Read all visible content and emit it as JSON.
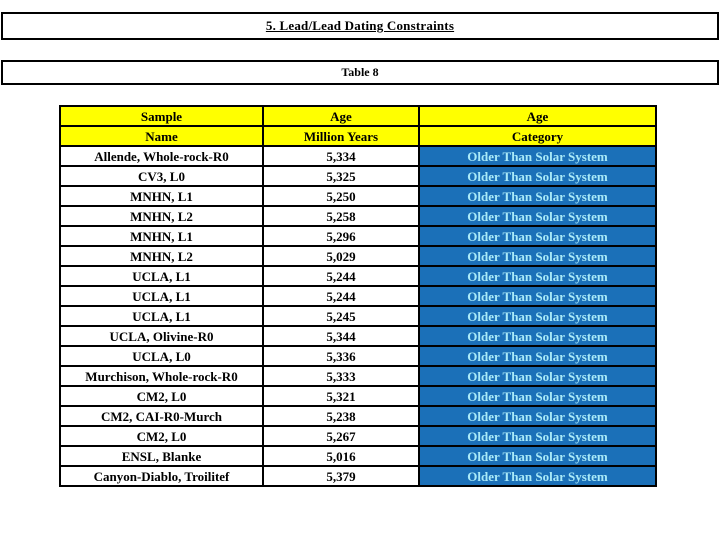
{
  "slide": {
    "title": "5. Lead/Lead Dating Constraints",
    "table_label": "Table 8"
  },
  "table": {
    "columns": [
      {
        "line1": "Sample",
        "line2": "Name"
      },
      {
        "line1": "Age",
        "line2": "Million Years"
      },
      {
        "line1": "Age",
        "line2": "Category"
      }
    ],
    "rows": [
      {
        "name": "Allende, Whole-rock-R0",
        "age": "5,334",
        "category": "Older Than Solar System"
      },
      {
        "name": "CV3, L0",
        "age": "5,325",
        "category": "Older Than Solar System"
      },
      {
        "name": "MNHN, L1",
        "age": "5,250",
        "category": "Older Than Solar System"
      },
      {
        "name": "MNHN, L2",
        "age": "5,258",
        "category": "Older Than Solar System"
      },
      {
        "name": "MNHN, L1",
        "age": "5,296",
        "category": "Older Than Solar System"
      },
      {
        "name": "MNHN, L2",
        "age": "5,029",
        "category": "Older Than Solar System"
      },
      {
        "name": "UCLA, L1",
        "age": "5,244",
        "category": "Older Than Solar System"
      },
      {
        "name": "UCLA, L1",
        "age": "5,244",
        "category": "Older Than Solar System"
      },
      {
        "name": "UCLA, L1",
        "age": "5,245",
        "category": "Older Than Solar System"
      },
      {
        "name": "UCLA, Olivine-R0",
        "age": "5,344",
        "category": "Older Than Solar System"
      },
      {
        "name": "UCLA, L0",
        "age": "5,336",
        "category": "Older Than Solar System"
      },
      {
        "name": "Murchison, Whole-rock-R0",
        "age": "5,333",
        "category": "Older Than Solar System"
      },
      {
        "name": "CM2, L0",
        "age": "5,321",
        "category": "Older Than Solar System"
      },
      {
        "name": "CM2, CAI-R0-Murch",
        "age": "5,238",
        "category": "Older Than Solar System"
      },
      {
        "name": "CM2, L0",
        "age": "5,267",
        "category": "Older Than Solar System"
      },
      {
        "name": "ENSL, Blanke",
        "age": "5,016",
        "category": "Older Than Solar System"
      },
      {
        "name": "Canyon-Diablo, Troilitef",
        "age": "5,379",
        "category": "Older Than Solar System"
      }
    ]
  },
  "colors": {
    "header_bg": "#FFFF00",
    "category_bg": "#1B70B8",
    "category_text": "#A9EAF8",
    "border": "#000000",
    "text": "#000000",
    "page_bg": "#FFFFFF"
  }
}
